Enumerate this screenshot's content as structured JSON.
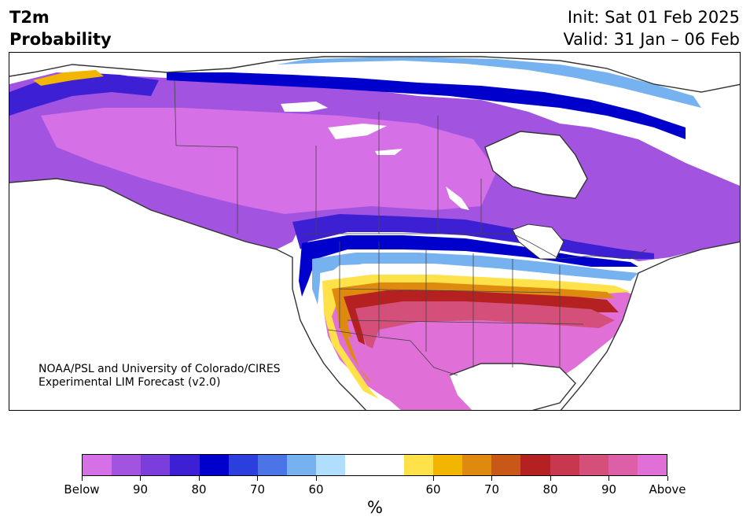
{
  "title": {
    "left_line1": "T2m",
    "left_line2": "Probability",
    "right_line1": "Init: Sat 01 Feb 2025",
    "right_line2": "Valid: 31 Jan – 06 Feb"
  },
  "credit": {
    "line1": "NOAA/PSL and University of Colorado/CIRES",
    "line2": "Experimental LIM Forecast (v2.0)"
  },
  "colorbar": {
    "colors": [
      "#d670e6",
      "#a254e0",
      "#7b3ddb",
      "#3d1fd4",
      "#0000cc",
      "#2a3fdd",
      "#4b74e6",
      "#76b2f0",
      "#b0defd",
      "#ffffff",
      "#ffffff",
      "#ffe14a",
      "#f2b600",
      "#de8a0f",
      "#c85718",
      "#b52121",
      "#c8374e",
      "#d4507a",
      "#dc5fa8",
      "#e070d8"
    ],
    "tick_labels": [
      "Below",
      "90",
      "80",
      "70",
      "60",
      "60",
      "70",
      "80",
      "90",
      "Above"
    ],
    "unit": "%"
  },
  "map": {
    "colors": {
      "below_strong": "#a254e0",
      "below_max": "#d670e6",
      "below_mid": "#7b3ddb",
      "below_deep": "#3d1fd4",
      "below_blue": "#0000cc",
      "below_blue2": "#2a3fdd",
      "below_blue3": "#4b74e6",
      "below_light": "#76b2f0",
      "below_pale": "#b0defd",
      "near_normal": "#ffffff",
      "above_yellow": "#ffe14a",
      "above_gold": "#f2b600",
      "above_orange": "#de8a0f",
      "above_rust": "#c85718",
      "above_red": "#b52121",
      "above_rose": "#c8374e",
      "above_pink": "#d4507a",
      "above_max": "#e070d8",
      "coast": "#333333"
    }
  }
}
